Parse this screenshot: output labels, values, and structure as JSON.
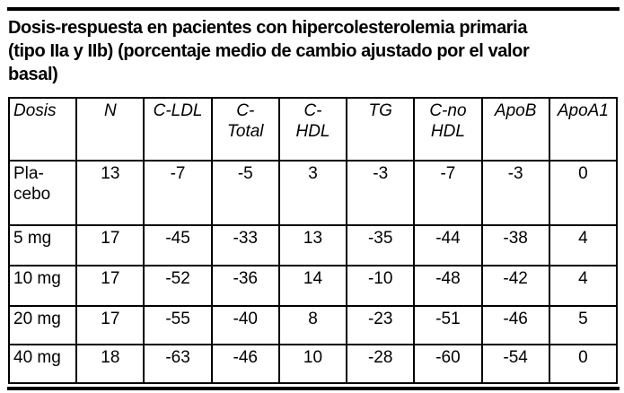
{
  "page": {
    "title": "Dosis-respuesta en pacientes con hipercolesterolemia primaria\n(tipo IIa y IIb) (porcentaje medio de cambio ajustado por el valor\nbasal)"
  },
  "colors": {
    "text": "#000000",
    "background": "#ffffff",
    "border": "#000000"
  },
  "table": {
    "columns": [
      "Dosis",
      "N",
      "C-LDL",
      "C-\nTotal",
      "C-\nHDL",
      "TG",
      "C-no\nHDL",
      "ApoB",
      "ApoA1"
    ],
    "rows": [
      {
        "dose": "Pla-\ncebo",
        "values": [
          "13",
          "-7",
          "-5",
          "3",
          "-3",
          "-7",
          "-3",
          "0"
        ]
      },
      {
        "dose": "5 mg",
        "values": [
          "17",
          "-45",
          "-33",
          "13",
          "-35",
          "-44",
          "-38",
          "4"
        ]
      },
      {
        "dose": "10 mg",
        "values": [
          "17",
          "-52",
          "-36",
          "14",
          "-10",
          "-48",
          "-42",
          "4"
        ]
      },
      {
        "dose": "20 mg",
        "values": [
          "17",
          "-55",
          "-40",
          "8",
          "-23",
          "-51",
          "-46",
          "5"
        ]
      },
      {
        "dose": "40 mg",
        "values": [
          "18",
          "-63",
          "-46",
          "10",
          "-28",
          "-60",
          "-54",
          "0"
        ]
      }
    ]
  }
}
